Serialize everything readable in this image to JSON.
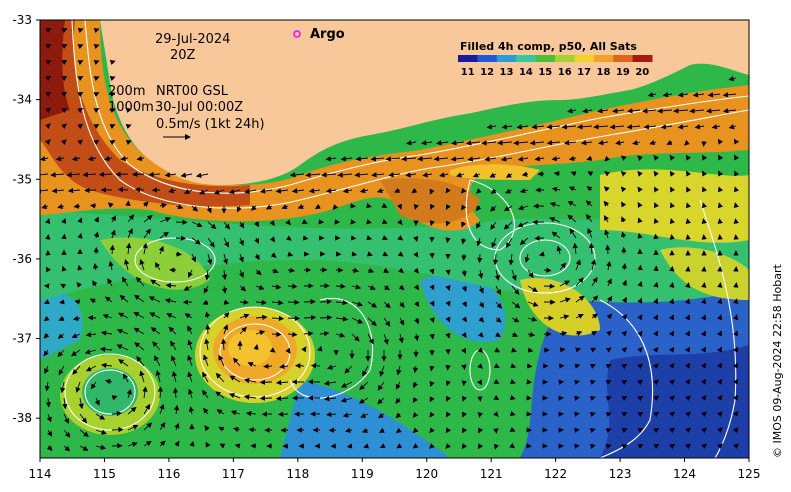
{
  "map": {
    "datetime_line1": "29-Jul-2024",
    "datetime_line2": "20Z",
    "argo_label": "Argo",
    "contour_200": "200m",
    "contour_1000": "1000m",
    "product": "NRT00 GSL",
    "product_time": "30-Jul 00:00Z",
    "scale_label": "0.5m/s (1kt 24h)",
    "credit": "© IMOS 09-Aug-2024 22:58 Hobart",
    "colors": {
      "land": "#f9c89a",
      "argo_marker": "#ff00ff",
      "contour": "#ffffff",
      "arrow": "#000000"
    }
  },
  "legend": {
    "title": "Filled 4h comp, p50, All Sats",
    "labels": [
      "11",
      "12",
      "13",
      "14",
      "15",
      "16",
      "17",
      "18",
      "19",
      "20"
    ],
    "colors": [
      "#1a1a9c",
      "#1f5ad6",
      "#2c9cd8",
      "#3ac7a0",
      "#4cbf3a",
      "#a6d12e",
      "#f2d02a",
      "#f1a224",
      "#e0641c",
      "#a81a10"
    ]
  },
  "axes": {
    "x_ticks": [
      "114",
      "115",
      "116",
      "117",
      "118",
      "119",
      "120",
      "121",
      "122",
      "123",
      "124",
      "125"
    ],
    "y_ticks": [
      "-33",
      "-34",
      "-35",
      "-36",
      "-37",
      "-38"
    ],
    "xlim": [
      114,
      125
    ],
    "ylim": [
      -38.5,
      -33
    ]
  }
}
